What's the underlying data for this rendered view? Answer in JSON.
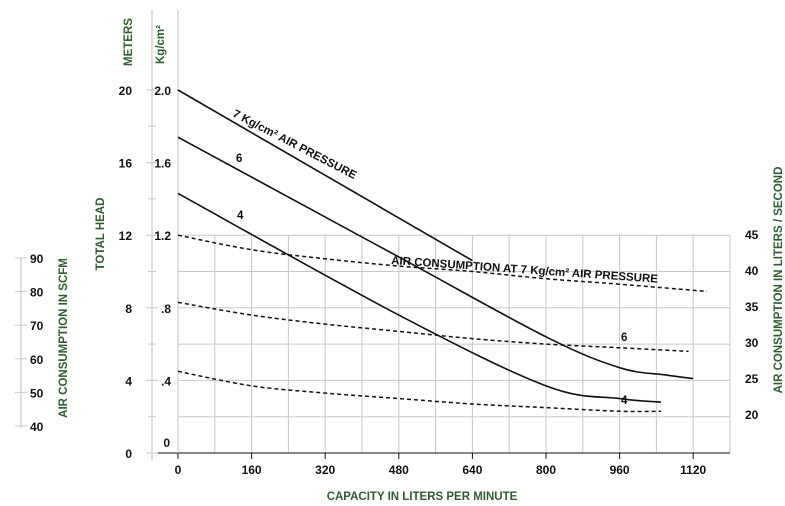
{
  "chart_data": {
    "type": "line",
    "grid": true,
    "xlabel": "CAPACITY IN LITERS PER MINUTE",
    "ylabel_meters": "TOTAL HEAD",
    "units_meters": "METERS",
    "units_kgcm2": "Kg/cm²",
    "ylabel_right": "AIR CONSUMPTION IN LITERS / SECOND",
    "ylabel_left": "AIR CONSUMPTION IN SCFM",
    "x_ticks": [
      "0",
      "160",
      "320",
      "480",
      "640",
      "800",
      "960",
      "1120"
    ],
    "y_meters_ticks": [
      "0",
      "4",
      "8",
      "12",
      "16",
      "20"
    ],
    "y_kgcm2_ticks": [
      ".4",
      ".8",
      "1.2",
      "1.6",
      "2.0"
    ],
    "y_right_ticks": [
      "20",
      "25",
      "30",
      "35",
      "40",
      "45"
    ],
    "y_scfm_ticks": [
      "40",
      "50",
      "60",
      "70",
      "80",
      "90"
    ],
    "xlim": [
      0,
      1200
    ],
    "ylim_meters": [
      0,
      20
    ],
    "series": [
      {
        "name": "7 Kg/cm² AIR PRESSURE",
        "style": "solid",
        "x": [
          0,
          640
        ],
        "y": [
          20.0,
          10.6
        ]
      },
      {
        "name": "6",
        "style": "solid",
        "x": [
          0,
          480,
          800,
          960,
          1060,
          1120
        ],
        "y": [
          17.4,
          10.8,
          6.4,
          4.7,
          4.3,
          4.1
        ]
      },
      {
        "name": "4",
        "style": "solid",
        "x": [
          0,
          480,
          800,
          960,
          1050
        ],
        "y": [
          14.3,
          7.6,
          3.7,
          3.0,
          2.8
        ]
      },
      {
        "name": "AIR CONSUMPTION AT 7 Kg/cm² AIR PRESSURE",
        "style": "dashed",
        "x": [
          0,
          160,
          320,
          480,
          640,
          800,
          960,
          1150
        ],
        "y": [
          12.0,
          11.2,
          10.7,
          10.3,
          10.0,
          9.6,
          9.3,
          8.9
        ]
      },
      {
        "name": "6",
        "style": "dashed",
        "x": [
          0,
          160,
          320,
          480,
          640,
          800,
          960,
          1110
        ],
        "y": [
          8.3,
          7.6,
          7.1,
          6.7,
          6.3,
          6.0,
          5.8,
          5.6
        ]
      },
      {
        "name": "4",
        "style": "dashed",
        "x": [
          0,
          160,
          320,
          480,
          640,
          800,
          960,
          1050
        ],
        "y": [
          4.5,
          3.7,
          3.3,
          3.0,
          2.7,
          2.5,
          2.3,
          2.3
        ]
      }
    ],
    "annotations": [
      {
        "text": "7 Kg/cm² AIR PRESSURE"
      },
      {
        "text": "6"
      },
      {
        "text": "4"
      },
      {
        "text": "AIR CONSUMPTION AT 7 Kg/cm² AIR PRESSURE"
      },
      {
        "text": "6"
      },
      {
        "text": "4"
      }
    ],
    "colors": {
      "ink": "#111111",
      "green": "#2e5e2e",
      "grid": "#c8c8c8"
    }
  }
}
